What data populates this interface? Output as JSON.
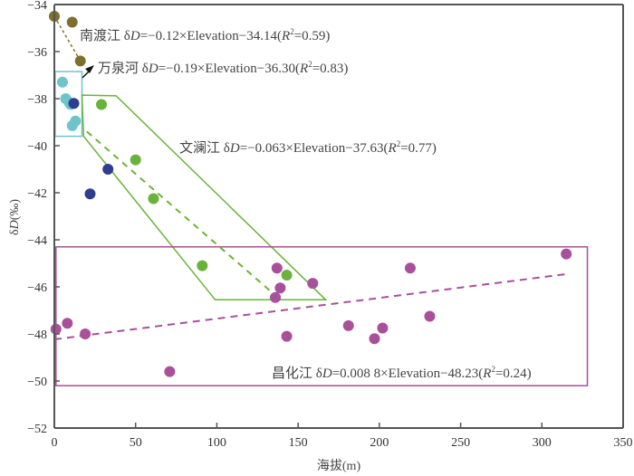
{
  "chart_data": {
    "type": "scatter",
    "title": "",
    "xlabel": "海拔(m)",
    "ylabel": "δD(‰)",
    "ylabel_parts": {
      "delta": "δ",
      "italic": "D",
      "rest": "(‰)"
    },
    "xlim": [
      0,
      350
    ],
    "ylim": [
      -52,
      -34
    ],
    "xticks": [
      "0",
      "50",
      "100",
      "150",
      "200",
      "250",
      "300",
      "350"
    ],
    "xtick_values": [
      0,
      50,
      100,
      150,
      200,
      250,
      300,
      350
    ],
    "yticks": [
      "−34",
      "−36",
      "−38",
      "−40",
      "−42",
      "−44",
      "−46",
      "−48",
      "−50",
      "−52"
    ],
    "ytick_values": [
      -34,
      -36,
      -38,
      -40,
      -42,
      -44,
      -46,
      -48,
      -50,
      -52
    ],
    "grid": false,
    "series": [
      {
        "name": "南渡江",
        "color": "#7d6f2e",
        "points": [
          [
            0,
            -34.5
          ],
          [
            11,
            -34.75
          ],
          [
            16,
            -36.4
          ]
        ],
        "fit": {
          "slope": -0.12,
          "intercept": -34.14,
          "x_range": [
            0,
            16
          ]
        },
        "annotation": {
          "name": "南渡江",
          "prefix": " δ",
          "d": "D",
          "eq": "=−0.12×Elevation−34.14(",
          "r": "R",
          "sup": "2",
          "tail": "=0.59)"
        }
      },
      {
        "name": "万泉河",
        "color": "#6fc3cc",
        "points": [
          [
            5,
            -37.3
          ],
          [
            7,
            -38.0
          ],
          [
            9,
            -38.15
          ],
          [
            10,
            -38.25
          ],
          [
            13,
            -38.95
          ],
          [
            11,
            -39.15
          ]
        ],
        "fit": {
          "slope": -0.19,
          "intercept": -36.3
        },
        "annotation": {
          "name": "万泉河",
          "prefix": " δ",
          "d": "D",
          "eq": "=−0.19×Elevation−36.30(",
          "r": "R",
          "sup": "2",
          "tail": "=0.83)"
        }
      },
      {
        "name": "unlabeled",
        "color": "#2e3d8e",
        "points": [
          [
            12,
            -38.2
          ],
          [
            33,
            -41.0
          ],
          [
            22,
            -42.05
          ]
        ]
      },
      {
        "name": "文澜江",
        "color": "#6ab33b",
        "points": [
          [
            29,
            -38.25
          ],
          [
            50,
            -40.6
          ],
          [
            61,
            -42.25
          ],
          [
            91,
            -45.1
          ],
          [
            143,
            -45.5
          ]
        ],
        "fit": {
          "slope": -0.063,
          "intercept": -37.63,
          "x_range": [
            20,
            140
          ]
        },
        "annotation": {
          "name": "文澜江",
          "prefix": " δ",
          "d": "D",
          "eq": "=−0.063×Elevation−37.63(",
          "r": "R",
          "sup": "2",
          "tail": "=0.77)"
        }
      },
      {
        "name": "昌化江",
        "color": "#a8509a",
        "points": [
          [
            1,
            -47.8
          ],
          [
            8,
            -47.55
          ],
          [
            19,
            -48.0
          ],
          [
            71,
            -49.6
          ],
          [
            137,
            -45.2
          ],
          [
            139,
            -46.05
          ],
          [
            136,
            -46.45
          ],
          [
            143,
            -48.1
          ],
          [
            159,
            -45.85
          ],
          [
            181,
            -47.65
          ],
          [
            197,
            -48.2
          ],
          [
            202,
            -47.75
          ],
          [
            219,
            -45.2
          ],
          [
            231,
            -47.25
          ],
          [
            315,
            -44.6
          ]
        ],
        "fit": {
          "slope": 0.0088,
          "intercept": -48.23,
          "x_range": [
            0,
            315
          ]
        },
        "annotation": {
          "name": "昌化江",
          "prefix": " δ",
          "d": "D",
          "eq": "=0.008 8×Elevation−48.23(",
          "r": "R",
          "sup": "2",
          "tail": "=0.24)"
        }
      }
    ],
    "enclosures": [
      {
        "name": "万泉河",
        "color": "#6fc3cc",
        "shape": "rect",
        "x": [
          0.5,
          17
        ],
        "y": [
          -39.6,
          -36.85
        ]
      },
      {
        "name": "文澜江",
        "color": "#6ab33b",
        "shape": "polygon",
        "points": [
          [
            17,
            -37.85
          ],
          [
            38,
            -37.88
          ],
          [
            167,
            -46.55
          ],
          [
            99,
            -46.55
          ],
          [
            18,
            -39.6
          ]
        ]
      },
      {
        "name": "昌化江",
        "color": "#a8509a",
        "shape": "rect",
        "x": [
          1,
          328
        ],
        "y": [
          -50.2,
          -44.3
        ]
      }
    ]
  }
}
